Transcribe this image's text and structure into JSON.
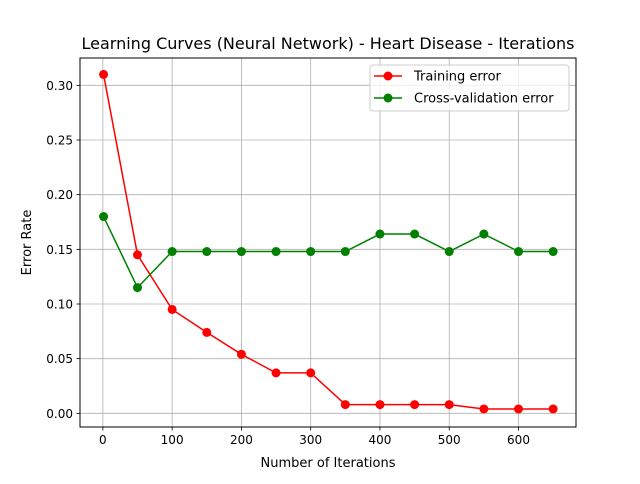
{
  "chart_data": {
    "type": "line",
    "title": "Learning Curves (Neural Network) - Heart Disease - Iterations",
    "xlabel": "Number of Iterations",
    "ylabel": "Error Rate",
    "xlim": [
      -33,
      683
    ],
    "ylim": [
      -0.0125,
      0.325
    ],
    "x_ticks": [
      0,
      100,
      200,
      300,
      400,
      500,
      600
    ],
    "y_ticks": [
      0.0,
      0.05,
      0.1,
      0.15,
      0.2,
      0.25,
      0.3
    ],
    "x_tick_labels": [
      "0",
      "100",
      "200",
      "300",
      "400",
      "500",
      "600"
    ],
    "y_tick_labels": [
      "0.00",
      "0.05",
      "0.10",
      "0.15",
      "0.20",
      "0.25",
      "0.30"
    ],
    "grid": true,
    "legend_position": "top-right",
    "x": [
      1,
      50,
      100,
      150,
      200,
      250,
      300,
      350,
      400,
      450,
      500,
      550,
      600,
      650
    ],
    "series": [
      {
        "name": "Training error",
        "color": "#ff0000",
        "values": [
          0.31,
          0.145,
          0.095,
          0.074,
          0.054,
          0.037,
          0.037,
          0.008,
          0.008,
          0.008,
          0.008,
          0.004,
          0.004,
          0.004
        ]
      },
      {
        "name": "Cross-validation error",
        "color": "#008000",
        "values": [
          0.18,
          0.115,
          0.148,
          0.148,
          0.148,
          0.148,
          0.148,
          0.148,
          0.164,
          0.164,
          0.148,
          0.164,
          0.148,
          0.148
        ]
      }
    ]
  }
}
